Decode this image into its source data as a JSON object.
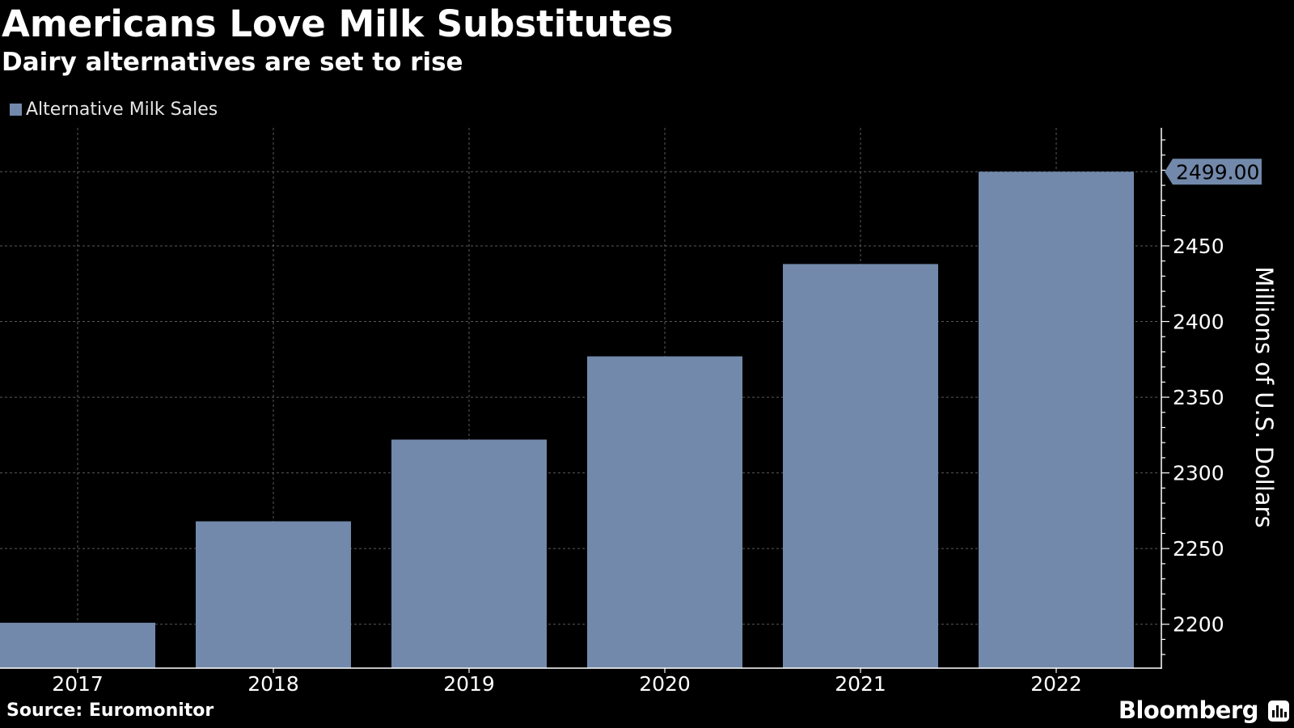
{
  "header": {
    "title": "Americans Love Milk Substitutes",
    "subtitle": "Dairy alternatives are set to rise"
  },
  "footer": {
    "source": "Source: Euromonitor",
    "brand": "Bloomberg",
    "brand_icon": "bloomberg-chart-icon"
  },
  "colors": {
    "background": "#000000",
    "bar": "#7289ab",
    "grid": "#5a5a5a",
    "text": "#ffffff"
  },
  "chart_data": {
    "type": "bar",
    "title": "Americans Love Milk Substitutes",
    "subtitle": "Dairy alternatives are set to rise",
    "categories": [
      "2017",
      "2018",
      "2019",
      "2020",
      "2021",
      "2022"
    ],
    "series": [
      {
        "name": "Alternative Milk Sales",
        "values": [
          2201,
          2268,
          2322,
          2377,
          2438,
          2499
        ]
      }
    ],
    "xlabel": "",
    "ylabel": "Millions of U.S. Dollars",
    "ylim": [
      2171,
      2528
    ],
    "yticks": [
      2200,
      2250,
      2300,
      2350,
      2400,
      2450
    ],
    "callout_label": "2499.00",
    "y_axis_position": "right",
    "legend_position": "top-left",
    "grid": true
  }
}
